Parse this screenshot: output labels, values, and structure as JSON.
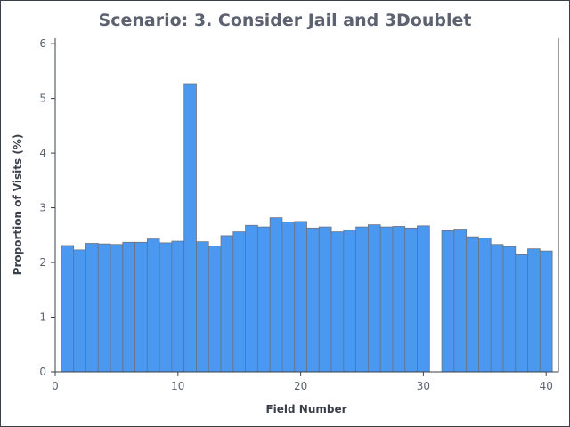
{
  "chart_data": {
    "type": "bar",
    "title": "Scenario: 3. Consider Jail and 3Doublet",
    "xlabel": "Field Number",
    "ylabel": "Proportion of Visits (%)",
    "xlim": [
      0,
      41
    ],
    "ylim": [
      0,
      6.1
    ],
    "xticks": [
      0,
      10,
      20,
      30,
      40
    ],
    "yticks": [
      0,
      1,
      2,
      3,
      4,
      5,
      6
    ],
    "grid": false,
    "colors": {
      "bar": "#4a98f0",
      "bar_edge": "#6b7280",
      "axis": "#3a3f4a",
      "title": "#5d6270"
    },
    "fields": [
      1,
      2,
      3,
      4,
      5,
      6,
      7,
      8,
      9,
      10,
      11,
      12,
      13,
      14,
      15,
      16,
      17,
      18,
      19,
      20,
      21,
      22,
      23,
      24,
      25,
      26,
      27,
      28,
      29,
      30,
      31,
      32,
      33,
      34,
      35,
      36,
      37,
      38,
      39,
      40
    ],
    "values": [
      2.31,
      2.23,
      2.35,
      2.34,
      2.33,
      2.37,
      2.37,
      2.43,
      2.36,
      2.39,
      5.27,
      2.38,
      2.3,
      2.49,
      2.56,
      2.68,
      2.65,
      2.82,
      2.74,
      2.75,
      2.63,
      2.65,
      2.56,
      2.59,
      2.65,
      2.69,
      2.65,
      2.66,
      2.63,
      2.67,
      0,
      2.58,
      2.61,
      2.47,
      2.45,
      2.33,
      2.29,
      2.14,
      2.25,
      2.21
    ]
  }
}
